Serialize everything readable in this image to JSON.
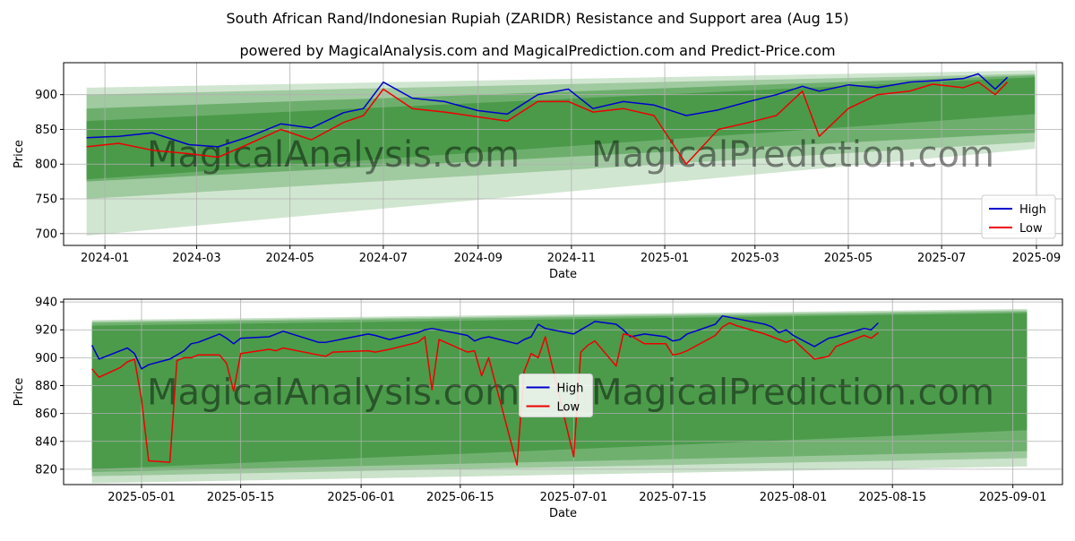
{
  "title": "South African Rand/Indonesian Rupiah (ZARIDR) Resistance and Support area (Aug 15)",
  "subtitle": "powered by MagicalAnalysis.com and MagicalPrediction.com and Predict-Price.com",
  "watermark_left": "MagicalAnalysis.com",
  "watermark_right": "MagicalPrediction.com",
  "colors": {
    "high": "#0000cc",
    "low": "#ee0000",
    "band": "#2e8b2e",
    "grid": "#b0b0b0",
    "legend_border": "#cccccc"
  },
  "chart_data": [
    {
      "type": "line",
      "xlabel": "Date",
      "ylabel": "Price",
      "x_ticks": [
        "2024-01",
        "2024-03",
        "2024-05",
        "2024-07",
        "2024-09",
        "2024-11",
        "2025-01",
        "2025-03",
        "2025-05",
        "2025-07",
        "2025-09"
      ],
      "y_ticks": [
        700,
        750,
        800,
        850,
        900
      ],
      "xlim": [
        "2023-12-05",
        "2025-09-18"
      ],
      "ylim": [
        683,
        946
      ],
      "grid": true,
      "legend": "bottom-right",
      "x": [
        "2023-12-20",
        "2024-01-10",
        "2024-02-01",
        "2024-02-25",
        "2024-03-15",
        "2024-04-05",
        "2024-04-25",
        "2024-05-15",
        "2024-06-05",
        "2024-06-18",
        "2024-07-01",
        "2024-07-20",
        "2024-08-10",
        "2024-09-01",
        "2024-09-20",
        "2024-10-10",
        "2024-10-30",
        "2024-11-15",
        "2024-12-05",
        "2024-12-25",
        "2025-01-15",
        "2025-02-05",
        "2025-02-25",
        "2025-03-15",
        "2025-04-01",
        "2025-04-12",
        "2025-05-01",
        "2025-05-20",
        "2025-06-10",
        "2025-06-25",
        "2025-07-15",
        "2025-07-25",
        "2025-08-05",
        "2025-08-13"
      ],
      "series": [
        {
          "name": "High",
          "values": [
            838,
            840,
            845,
            828,
            825,
            840,
            858,
            852,
            874,
            880,
            918,
            895,
            890,
            877,
            872,
            900,
            908,
            880,
            890,
            885,
            870,
            878,
            890,
            900,
            912,
            905,
            914,
            910,
            918,
            920,
            923,
            930,
            908,
            925
          ]
        },
        {
          "name": "Low",
          "values": [
            825,
            830,
            820,
            815,
            810,
            830,
            850,
            835,
            860,
            870,
            908,
            880,
            875,
            868,
            862,
            890,
            890,
            875,
            880,
            870,
            800,
            850,
            860,
            870,
            905,
            840,
            880,
            900,
            905,
            915,
            910,
            918,
            900,
            918
          ]
        }
      ],
      "bands": [
        {
          "start": [
            "2023-12-20",
            910,
            697
          ],
          "end": [
            "2025-08-31",
            935,
            822
          ],
          "opacity": 0.22
        },
        {
          "start": [
            "2023-12-20",
            900,
            750
          ],
          "end": [
            "2025-08-31",
            930,
            832
          ],
          "opacity": 0.3
        },
        {
          "start": [
            "2023-12-20",
            880,
            775
          ],
          "end": [
            "2025-08-31",
            928,
            845
          ],
          "opacity": 0.45
        },
        {
          "start": [
            "2023-12-20",
            862,
            778
          ],
          "end": [
            "2025-08-31",
            925,
            872
          ],
          "opacity": 0.55
        }
      ]
    },
    {
      "type": "line",
      "xlabel": "Date",
      "ylabel": "Price",
      "x_ticks": [
        "2025-05-01",
        "2025-05-15",
        "2025-06-01",
        "2025-06-15",
        "2025-07-01",
        "2025-07-15",
        "2025-08-01",
        "2025-08-15",
        "2025-09-01"
      ],
      "y_ticks": [
        820,
        840,
        860,
        880,
        900,
        920,
        940
      ],
      "xlim": [
        "2025-04-20",
        "2025-09-08"
      ],
      "ylim": [
        809,
        942
      ],
      "grid": true,
      "legend": "center",
      "x": [
        "2025-04-24",
        "2025-04-25",
        "2025-04-28",
        "2025-04-29",
        "2025-04-30",
        "2025-05-01",
        "2025-05-02",
        "2025-05-05",
        "2025-05-06",
        "2025-05-07",
        "2025-05-08",
        "2025-05-09",
        "2025-05-12",
        "2025-05-13",
        "2025-05-14",
        "2025-05-15",
        "2025-05-19",
        "2025-05-20",
        "2025-05-21",
        "2025-05-26",
        "2025-05-27",
        "2025-05-28",
        "2025-06-02",
        "2025-06-03",
        "2025-06-05",
        "2025-06-09",
        "2025-06-10",
        "2025-06-11",
        "2025-06-12",
        "2025-06-16",
        "2025-06-17",
        "2025-06-18",
        "2025-06-19",
        "2025-06-23",
        "2025-06-24",
        "2025-06-25",
        "2025-06-26",
        "2025-06-27",
        "2025-07-01",
        "2025-07-02",
        "2025-07-03",
        "2025-07-04",
        "2025-07-07",
        "2025-07-08",
        "2025-07-09",
        "2025-07-10",
        "2025-07-11",
        "2025-07-14",
        "2025-07-15",
        "2025-07-16",
        "2025-07-17",
        "2025-07-21",
        "2025-07-22",
        "2025-07-23",
        "2025-07-24",
        "2025-07-28",
        "2025-07-29",
        "2025-07-30",
        "2025-07-31",
        "2025-08-01",
        "2025-08-04",
        "2025-08-05",
        "2025-08-06",
        "2025-08-07",
        "2025-08-11",
        "2025-08-12",
        "2025-08-13"
      ],
      "series": [
        {
          "name": "High",
          "values": [
            909,
            899,
            905,
            907,
            903,
            892,
            895,
            899,
            902,
            905,
            910,
            911,
            917,
            914,
            910,
            914,
            915,
            917,
            919,
            911,
            911,
            912,
            917,
            916,
            913,
            918,
            920,
            921,
            920,
            916,
            912,
            914,
            915,
            910,
            913,
            915,
            924,
            921,
            917,
            920,
            923,
            926,
            924,
            920,
            915,
            916,
            917,
            915,
            912,
            913,
            917,
            924,
            930,
            929,
            928,
            924,
            922,
            918,
            920,
            916,
            908,
            911,
            914,
            915,
            921,
            920,
            925
          ]
        },
        {
          "name": "Low",
          "values": [
            892,
            886,
            893,
            897,
            899,
            870,
            826,
            825,
            898,
            900,
            900,
            902,
            902,
            896,
            876,
            903,
            906,
            905,
            907,
            902,
            901,
            904,
            905,
            904,
            906,
            911,
            915,
            877,
            913,
            904,
            905,
            887,
            900,
            823,
            890,
            903,
            900,
            915,
            829,
            904,
            909,
            912,
            894,
            917,
            916,
            913,
            910,
            910,
            902,
            903,
            905,
            916,
            922,
            925,
            923,
            917,
            915,
            913,
            911,
            913,
            899,
            900,
            901,
            908,
            916,
            914,
            918
          ]
        }
      ],
      "bands": [
        {
          "start": [
            "2025-04-24",
            927,
            810
          ],
          "end": [
            "2025-09-03",
            935,
            822
          ],
          "opacity": 0.25
        },
        {
          "start": [
            "2025-04-24",
            926,
            815
          ],
          "end": [
            "2025-09-03",
            934,
            828
          ],
          "opacity": 0.3
        },
        {
          "start": [
            "2025-04-24",
            925,
            818
          ],
          "end": [
            "2025-09-03",
            933,
            833
          ],
          "opacity": 0.4
        },
        {
          "start": [
            "2025-04-24",
            923,
            820
          ],
          "end": [
            "2025-09-03",
            932,
            848
          ],
          "opacity": 0.55
        }
      ]
    }
  ]
}
